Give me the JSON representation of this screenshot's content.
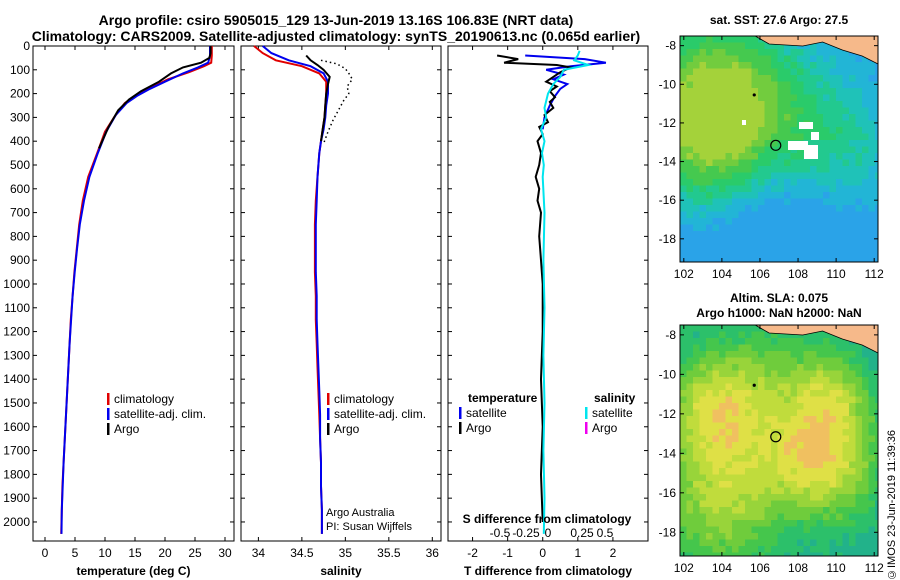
{
  "header": {
    "line1": "Argo profile: csiro 5905015_129 13-Jun-2019 13.16S 106.83E (NRT data)",
    "line2": "Climatology: CARS2009. Satellite-adjusted climatology: synTS_20190613.nc (0.065d earlier)"
  },
  "footer": "©IMOS 23-Jun-2019 11:39:36",
  "colors": {
    "climatology": "#e00000",
    "satellite": "#0000ee",
    "argo": "#000000",
    "sat_salinity": "#00e5ee",
    "argo_salinity": "#ee00ee",
    "land": "#f6b98a"
  },
  "chart_data": [
    {
      "type": "line",
      "id": "temperature",
      "xlabel": "temperature (deg C)",
      "ylabel": "",
      "xlim": [
        -2,
        31.5
      ],
      "ylim": [
        2080,
        0
      ],
      "xticks": [
        0,
        5,
        10,
        15,
        20,
        25,
        30
      ],
      "yticks": [
        0,
        100,
        200,
        300,
        400,
        500,
        600,
        700,
        800,
        900,
        1000,
        1100,
        1200,
        1300,
        1400,
        1500,
        1600,
        1700,
        1800,
        1900,
        2000
      ],
      "legend": {
        "position": "bottom-center",
        "entries": [
          "climatology",
          "satellite-adj. clim.",
          "Argo"
        ]
      },
      "series": [
        {
          "name": "climatology",
          "color": "#e00000",
          "points": [
            [
              27.8,
              0
            ],
            [
              27.8,
              40
            ],
            [
              27.7,
              70
            ],
            [
              26.5,
              85
            ],
            [
              24,
              110
            ],
            [
              20.5,
              140
            ],
            [
              18,
              170
            ],
            [
              15,
              210
            ],
            [
              13.3,
              240
            ],
            [
              11.5,
              300
            ],
            [
              10,
              360
            ],
            [
              8.7,
              450
            ],
            [
              7.2,
              550
            ],
            [
              6.3,
              650
            ],
            [
              5.7,
              750
            ],
            [
              5.3,
              850
            ],
            [
              4.9,
              950
            ],
            [
              4.6,
              1050
            ],
            [
              4.3,
              1150
            ],
            [
              4.1,
              1250
            ],
            [
              3.9,
              1350
            ],
            [
              3.7,
              1450
            ],
            [
              3.5,
              1550
            ],
            [
              3.3,
              1650
            ],
            [
              3.1,
              1750
            ],
            [
              2.9,
              1850
            ],
            [
              2.8,
              1950
            ],
            [
              2.7,
              2050
            ]
          ]
        },
        {
          "name": "satellite-adj. clim.",
          "color": "#0000ee",
          "points": [
            [
              27.5,
              0
            ],
            [
              27.5,
              40
            ],
            [
              27.2,
              70
            ],
            [
              25.5,
              90
            ],
            [
              23,
              115
            ],
            [
              20,
              150
            ],
            [
              17.5,
              180
            ],
            [
              15.3,
              210
            ],
            [
              13.6,
              240
            ],
            [
              11.8,
              290
            ],
            [
              10.2,
              360
            ],
            [
              8.8,
              450
            ],
            [
              7.4,
              550
            ],
            [
              6.5,
              650
            ],
            [
              5.8,
              750
            ],
            [
              5.35,
              850
            ],
            [
              4.95,
              950
            ],
            [
              4.6,
              1050
            ],
            [
              4.35,
              1150
            ],
            [
              4.1,
              1250
            ],
            [
              3.9,
              1350
            ],
            [
              3.7,
              1450
            ],
            [
              3.5,
              1550
            ],
            [
              3.3,
              1650
            ],
            [
              3.1,
              1750
            ],
            [
              2.95,
              1850
            ],
            [
              2.8,
              1950
            ],
            [
              2.75,
              2050
            ]
          ]
        },
        {
          "name": "Argo",
          "color": "#000000",
          "points": [
            [
              27.6,
              0
            ],
            [
              27.6,
              30
            ],
            [
              27.4,
              50
            ],
            [
              26,
              70
            ],
            [
              23,
              90
            ],
            [
              21,
              115
            ],
            [
              19,
              150
            ],
            [
              16,
              190
            ],
            [
              14,
              225
            ],
            [
              12.2,
              270
            ],
            [
              10.6,
              340
            ],
            [
              9,
              430
            ]
          ]
        }
      ]
    },
    {
      "type": "line",
      "id": "salinity",
      "xlabel": "salinity",
      "ylabel": "",
      "xlim": [
        33.8,
        36.1
      ],
      "ylim": [
        2080,
        0
      ],
      "xticks": [
        34,
        34.5,
        35,
        35.5,
        36
      ],
      "legend": {
        "position": "bottom-right",
        "entries": [
          "climatology",
          "satellite-adj. clim.",
          "Argo"
        ]
      },
      "annotations": [
        "Argo Australia",
        "PI: Susan Wijffels"
      ],
      "series": [
        {
          "name": "climatology",
          "color": "#e00000",
          "points": [
            [
              33.95,
              0
            ],
            [
              34.05,
              30
            ],
            [
              34.2,
              60
            ],
            [
              34.5,
              85
            ],
            [
              34.7,
              115
            ],
            [
              34.78,
              150
            ],
            [
              34.78,
              200
            ],
            [
              34.77,
              250
            ],
            [
              34.76,
              300
            ],
            [
              34.74,
              350
            ],
            [
              34.72,
              400
            ],
            [
              34.7,
              450
            ],
            [
              34.68,
              550
            ],
            [
              34.66,
              650
            ],
            [
              34.65,
              750
            ],
            [
              34.65,
              850
            ],
            [
              34.65,
              950
            ],
            [
              34.66,
              1050
            ],
            [
              34.66,
              1150
            ],
            [
              34.67,
              1250
            ],
            [
              34.68,
              1350
            ],
            [
              34.69,
              1450
            ],
            [
              34.7,
              1550
            ],
            [
              34.71,
              1650
            ],
            [
              34.72,
              1750
            ],
            [
              34.72,
              1850
            ],
            [
              34.73,
              1950
            ],
            [
              34.73,
              2050
            ]
          ]
        },
        {
          "name": "satellite-adj. clim.",
          "color": "#0000ee",
          "points": [
            [
              34.05,
              0
            ],
            [
              34.15,
              30
            ],
            [
              34.35,
              60
            ],
            [
              34.6,
              85
            ],
            [
              34.75,
              115
            ],
            [
              34.8,
              150
            ],
            [
              34.8,
              200
            ],
            [
              34.78,
              250
            ],
            [
              34.77,
              300
            ],
            [
              34.75,
              350
            ],
            [
              34.72,
              400
            ],
            [
              34.7,
              450
            ],
            [
              34.68,
              550
            ],
            [
              34.67,
              650
            ],
            [
              34.66,
              750
            ],
            [
              34.66,
              850
            ],
            [
              34.66,
              950
            ],
            [
              34.67,
              1050
            ],
            [
              34.67,
              1150
            ],
            [
              34.68,
              1250
            ],
            [
              34.69,
              1350
            ],
            [
              34.7,
              1450
            ],
            [
              34.71,
              1550
            ],
            [
              34.71,
              1650
            ],
            [
              34.72,
              1750
            ],
            [
              34.72,
              1850
            ],
            [
              34.73,
              1950
            ],
            [
              34.73,
              2050
            ]
          ]
        },
        {
          "name": "Argo",
          "color": "#000000",
          "points": [
            [
              34.55,
              40
            ],
            [
              34.6,
              60
            ],
            [
              34.68,
              80
            ],
            [
              34.75,
              100
            ],
            [
              34.82,
              130
            ],
            [
              34.8,
              160
            ],
            [
              34.78,
              200
            ],
            [
              34.77,
              250
            ],
            [
              34.76,
              300
            ],
            [
              34.74,
              350
            ],
            [
              34.72,
              400
            ]
          ]
        },
        {
          "name": "",
          "color": "#000000",
          "dotted": true,
          "points": [
            [
              34.72,
              60
            ],
            [
              34.9,
              75
            ],
            [
              35.0,
              95
            ],
            [
              35.05,
              120
            ],
            [
              35.08,
              140
            ],
            [
              35.02,
              170
            ],
            [
              35.04,
              200
            ],
            [
              34.98,
              230
            ],
            [
              34.92,
              270
            ],
            [
              34.86,
              310
            ],
            [
              34.8,
              360
            ],
            [
              34.75,
              410
            ]
          ]
        }
      ]
    },
    {
      "type": "line",
      "id": "difference",
      "xlabel": "T difference from climatology",
      "xlabel_top": "S difference from climatology",
      "xlim": [
        -2.7,
        3.0
      ],
      "ylim": [
        2080,
        0
      ],
      "xticks": [
        -2,
        -1,
        0,
        1,
        2
      ],
      "xticks_s": [
        "-0.5",
        "-0.25",
        "0",
        "0.25",
        "0.5"
      ],
      "legend": {
        "position": "bottom",
        "temperature_title": "temperature",
        "salinity_title": "salinity",
        "entries": [
          "satellite",
          "Argo",
          "satellite",
          "Argo"
        ]
      },
      "series": [
        {
          "name": "satellite",
          "color": "#0000ee",
          "points": [
            [
              -0.5,
              40
            ],
            [
              1.2,
              55
            ],
            [
              1.8,
              70
            ],
            [
              0.8,
              85
            ],
            [
              0.1,
              100
            ],
            [
              0.6,
              120
            ],
            [
              0.3,
              140
            ],
            [
              0.7,
              160
            ],
            [
              0.5,
              180
            ],
            [
              0.35,
              210
            ],
            [
              0.2,
              250
            ],
            [
              0.05,
              300
            ],
            [
              0.0,
              350
            ]
          ]
        },
        {
          "name": "Argo",
          "color": "#000000",
          "points": [
            [
              -1.3,
              40
            ],
            [
              -0.7,
              55
            ],
            [
              -1.1,
              70
            ],
            [
              0.4,
              80
            ],
            [
              0.8,
              90
            ],
            [
              0.5,
              110
            ],
            [
              0.3,
              130
            ],
            [
              0.1,
              150
            ],
            [
              0.4,
              170
            ],
            [
              0.2,
              190
            ],
            [
              0.35,
              215
            ],
            [
              0.2,
              235
            ],
            [
              0.3,
              260
            ],
            [
              0.05,
              290
            ],
            [
              0.15,
              320
            ],
            [
              -0.1,
              340
            ],
            [
              0.0,
              370
            ],
            [
              -0.15,
              400
            ],
            [
              -0.05,
              450
            ],
            [
              -0.1,
              500
            ],
            [
              -0.2,
              550
            ],
            [
              -0.1,
              600
            ],
            [
              -0.15,
              650
            ],
            [
              -0.05,
              700
            ],
            [
              -0.1,
              800
            ],
            [
              -0.05,
              900
            ],
            [
              0.0,
              1000
            ],
            [
              0.0,
              1200
            ],
            [
              -0.05,
              1400
            ],
            [
              0.0,
              1600
            ],
            [
              -0.05,
              1800
            ],
            [
              0.0,
              2000
            ]
          ]
        },
        {
          "name": "satellite",
          "color": "#00e5ee",
          "points": [
            [
              1.05,
              20
            ],
            [
              1.0,
              40
            ],
            [
              0.9,
              60
            ],
            [
              1.3,
              80
            ],
            [
              0.6,
              100
            ],
            [
              0.5,
              130
            ],
            [
              0.3,
              160
            ],
            [
              0.15,
              200
            ],
            [
              0.05,
              260
            ],
            [
              0.1,
              300
            ],
            [
              -0.05,
              350
            ],
            [
              0.05,
              400
            ],
            [
              -0.02,
              450
            ],
            [
              0.03,
              500
            ],
            [
              0.0,
              550
            ],
            [
              0.05,
              700
            ],
            [
              0.02,
              900
            ],
            [
              0.05,
              1100
            ],
            [
              0.02,
              1300
            ],
            [
              0.05,
              1500
            ],
            [
              0.02,
              1700
            ],
            [
              0.05,
              1900
            ],
            [
              0.03,
              2050
            ]
          ]
        }
      ]
    },
    {
      "type": "heatmap",
      "id": "sst-map",
      "title": "sat. SST: 27.6 Argo: 27.5",
      "xticks": [
        102,
        104,
        106,
        108,
        110,
        112
      ],
      "yticks": [
        -8,
        -10,
        -12,
        -14,
        -16,
        -18
      ],
      "xlim": [
        101.8,
        112.2
      ],
      "ylim": [
        -19.2,
        -7.5
      ],
      "marker": [
        106.83,
        -13.16
      ]
    },
    {
      "type": "heatmap",
      "id": "sla-map",
      "title": "Altim. SLA: 0.075",
      "subtitle": "Argo h1000: NaN h2000: NaN",
      "xticks": [
        102,
        104,
        106,
        108,
        110,
        112
      ],
      "yticks": [
        -8,
        -10,
        -12,
        -14,
        -16,
        -18
      ],
      "xlim": [
        101.8,
        112.2
      ],
      "ylim": [
        -19.2,
        -7.5
      ],
      "marker": [
        106.83,
        -13.16
      ]
    }
  ],
  "legends": {
    "temperature": [
      "climatology",
      "satellite-adj. clim.",
      "Argo"
    ],
    "salinity": [
      "climatology",
      "satellite-adj. clim.",
      "Argo"
    ],
    "diff_temperature_title": "temperature",
    "diff_salinity_title": "salinity",
    "diff_temperature": [
      "satellite",
      "Argo"
    ],
    "diff_salinity": [
      "satellite",
      "Argo"
    ]
  }
}
